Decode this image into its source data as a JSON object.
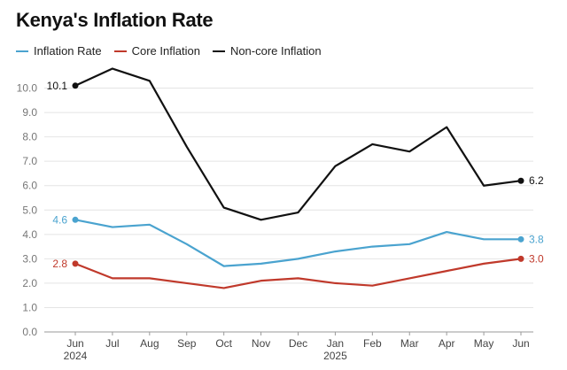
{
  "chart_data": {
    "type": "line",
    "title": "Kenya's Inflation Rate",
    "xlabel": "",
    "ylabel": "",
    "ylim": [
      0,
      11
    ],
    "yticks": [
      "0.0",
      "1.0",
      "2.0",
      "3.0",
      "4.0",
      "5.0",
      "6.0",
      "7.0",
      "8.0",
      "9.0",
      "10.0"
    ],
    "categories": [
      "Jun",
      "Jul",
      "Aug",
      "Sep",
      "Oct",
      "Nov",
      "Dec",
      "Jan",
      "Feb",
      "Mar",
      "Apr",
      "May",
      "Jun"
    ],
    "year_labels": [
      {
        "index": 0,
        "label": "2024"
      },
      {
        "index": 7,
        "label": "2025"
      }
    ],
    "series": [
      {
        "name": "Inflation Rate",
        "color": "#4aa3cf",
        "values": [
          4.6,
          4.3,
          4.4,
          3.6,
          2.7,
          2.8,
          3.0,
          3.3,
          3.5,
          3.6,
          4.1,
          3.8,
          3.8
        ],
        "start_label": "4.6",
        "end_label": "3.8"
      },
      {
        "name": "Core Inflation",
        "color": "#c0392b",
        "values": [
          2.8,
          2.2,
          2.2,
          2.0,
          1.8,
          2.1,
          2.2,
          2.0,
          1.9,
          2.2,
          2.5,
          2.8,
          3.0
        ],
        "start_label": "2.8",
        "end_label": "3.0"
      },
      {
        "name": "Non-core Inflation",
        "color": "#111111",
        "values": [
          10.1,
          10.8,
          10.3,
          7.6,
          5.1,
          4.6,
          4.9,
          6.8,
          7.7,
          7.4,
          8.4,
          6.0,
          6.2
        ],
        "start_label": "10.1",
        "end_label": "6.2"
      }
    ],
    "grid": true,
    "legend": "top-left"
  }
}
